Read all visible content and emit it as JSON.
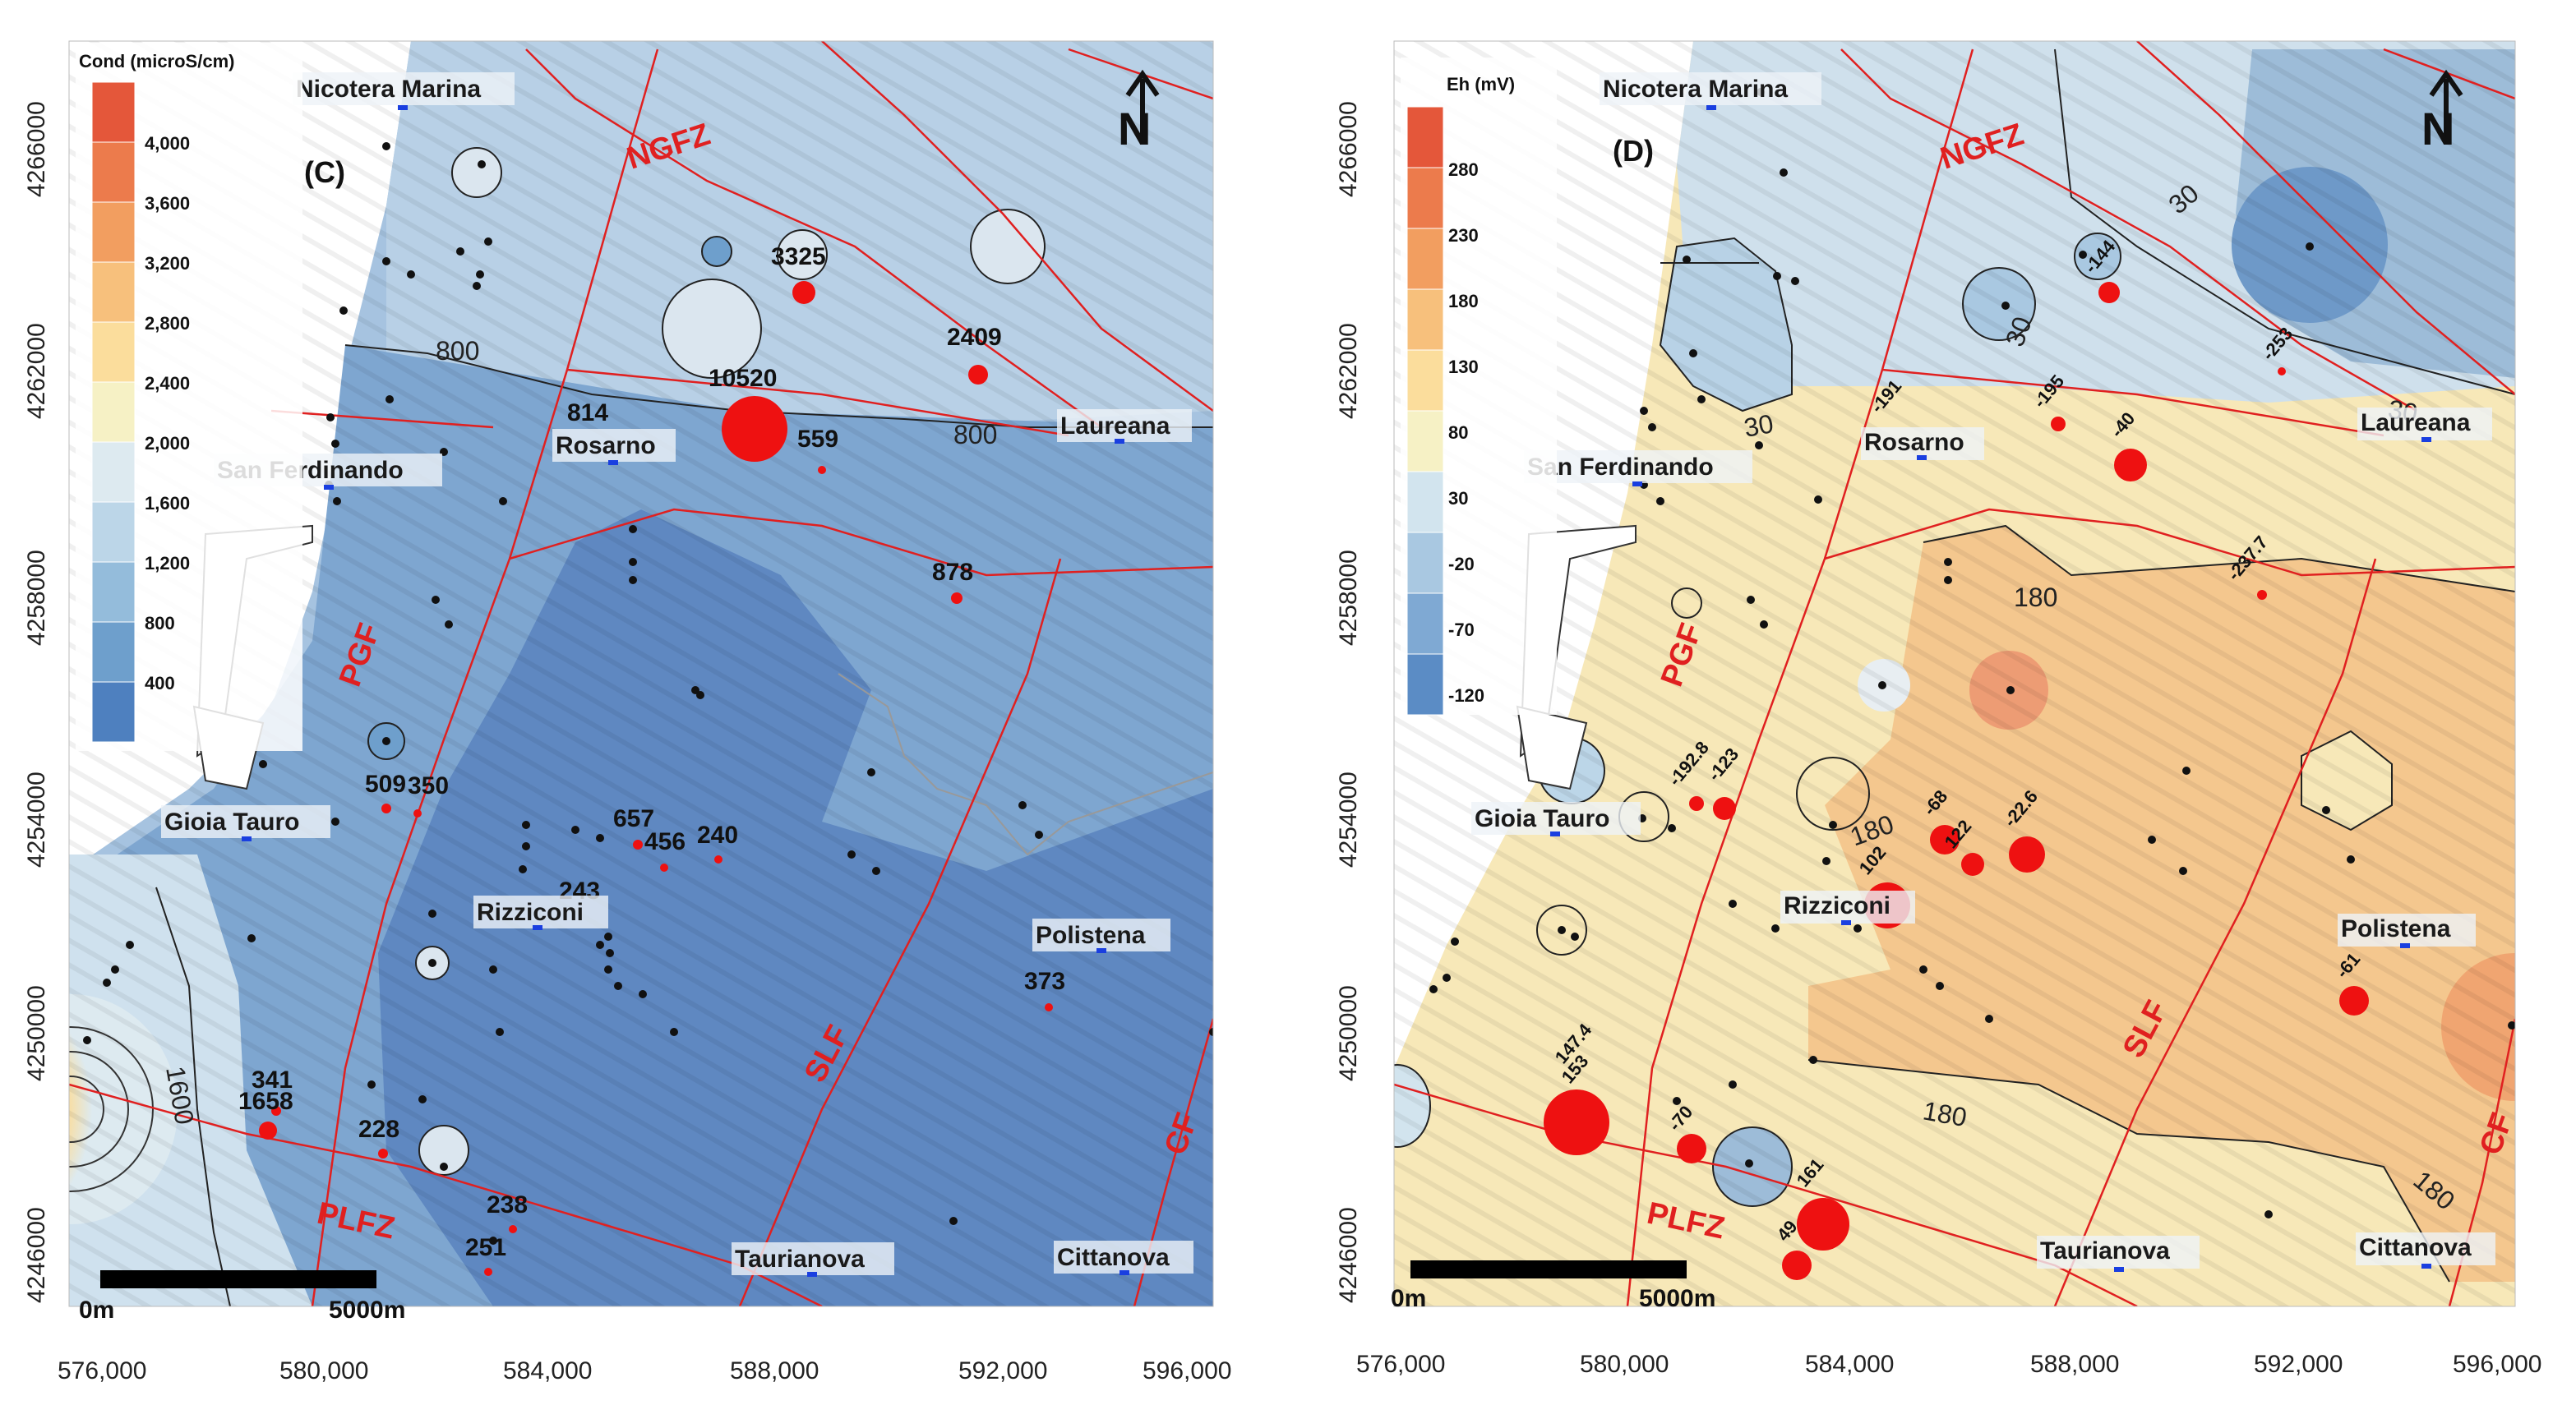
{
  "panel_c": {
    "letter": "(C)",
    "legend_title": "Cond (microS/cm)",
    "legend_ticks": [
      "4,000",
      "3,600",
      "3,200",
      "2,800",
      "2,400",
      "2,000",
      "1,600",
      "1,200",
      "800",
      "400"
    ],
    "legend_colors": [
      "#e4573a",
      "#ec7b4c",
      "#f29e60",
      "#f7c07c",
      "#fbdd9c",
      "#f6f1c5",
      "#ddeaf0",
      "#bcd6e8",
      "#94bcdb",
      "#6e9fcc",
      "#4e80bf"
    ],
    "contour_labels": [
      "800",
      "800",
      "1600"
    ],
    "values": [
      "3325",
      "10520",
      "2409",
      "814",
      "559",
      "878",
      "509",
      "350",
      "657",
      "456",
      "240",
      "243",
      "373",
      "341",
      "1658",
      "228",
      "238",
      "251"
    ]
  },
  "panel_d": {
    "letter": "(D)",
    "legend_title": "Eh (mV)",
    "legend_ticks": [
      "280",
      "230",
      "180",
      "130",
      "80",
      "30",
      "-20",
      "-70",
      "-120"
    ],
    "legend_colors": [
      "#e4573a",
      "#ec7b4c",
      "#f29e60",
      "#f7c07c",
      "#fbdd9c",
      "#f6f1c5",
      "#d2e4ee",
      "#a9c8e1",
      "#7fa9d3",
      "#5b8cc5"
    ],
    "contour_labels": [
      "30",
      "30",
      "30",
      "30",
      "180",
      "180",
      "180",
      "180"
    ],
    "values": [
      "-144",
      "-253",
      "-191",
      "-195",
      "-40",
      "-237.7",
      "-192.8",
      "-123",
      "-68",
      "122",
      "-22.6",
      "102",
      "-61",
      "147.4",
      "153",
      "-70",
      "161",
      "49"
    ]
  },
  "towns": {
    "nicotera": "Nicotera Marina",
    "san_ferdinando": "San Ferdinando",
    "rosarno": "Rosarno",
    "laureana": "Laureana",
    "gioia_tauro": "Gioia Tauro",
    "rizziconi": "Rizziconi",
    "polistena": "Polistena",
    "taurianova": "Taurianova",
    "cittanova": "Cittanova"
  },
  "faults": {
    "ngfz": "NGFZ",
    "pgf": "PGF",
    "slf": "SLF",
    "plfz": "PLFZ",
    "cf": "CF"
  },
  "axes": {
    "x_ticks": [
      "576,000",
      "580,000",
      "584,000",
      "588,000",
      "592,000",
      "596,000"
    ],
    "y_ticks": [
      "4266000",
      "4262000",
      "4258000",
      "4254000",
      "4250000",
      "4246000"
    ]
  },
  "scale_bar": {
    "start": "0m",
    "end": "5000m"
  },
  "north_arrow": "N",
  "icons": {
    "north": "north-arrow-icon",
    "town": "town-marker-icon"
  }
}
